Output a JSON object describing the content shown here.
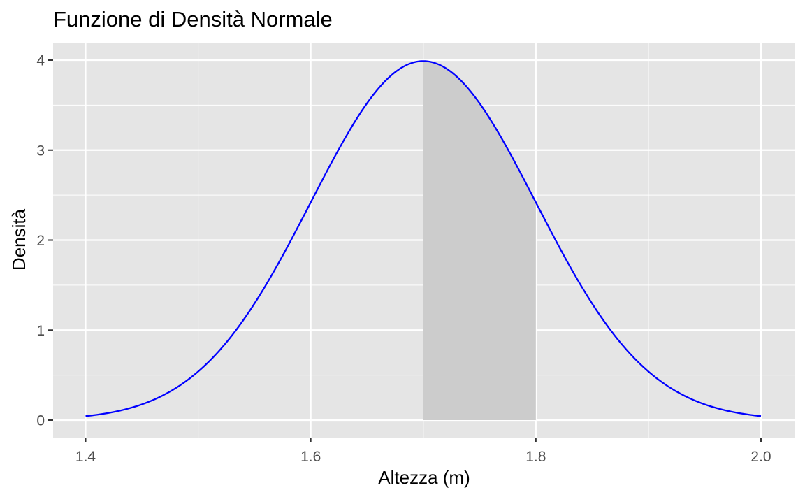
{
  "chart_data": {
    "type": "area",
    "title": "Funzione di Densità Normale",
    "xlabel": "Altezza (m)",
    "ylabel": "Densità",
    "xlim": [
      1.4,
      2.0
    ],
    "ylim": [
      0,
      4
    ],
    "x_ticks": [
      "1.4",
      "1.6",
      "1.8",
      "2.0"
    ],
    "y_ticks": [
      "0",
      "1",
      "2",
      "3",
      "4"
    ],
    "grid": true,
    "distribution": {
      "mean": 1.7,
      "sd": 0.1
    },
    "series": [
      {
        "color": "#0000ff",
        "x": [
          1.4,
          1.45,
          1.5,
          1.55,
          1.6,
          1.65,
          1.7,
          1.75,
          1.8,
          1.85,
          1.9,
          1.95,
          2.0
        ],
        "y": [
          0.044,
          0.175,
          0.54,
          1.295,
          2.42,
          3.521,
          3.989,
          3.521,
          2.42,
          1.295,
          0.54,
          0.175,
          0.044
        ]
      }
    ],
    "shaded_region": {
      "x_from": 1.7,
      "x_to": 1.8,
      "color": "#cccccc"
    },
    "colors": {
      "panel_background": "#e5e5e5",
      "grid": "#ffffff",
      "curve": "#0000ff",
      "shade": "#cccccc"
    }
  }
}
